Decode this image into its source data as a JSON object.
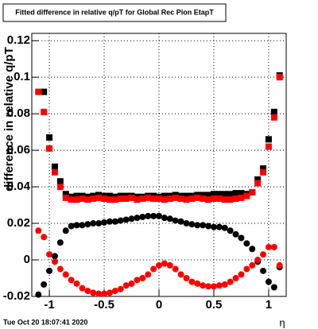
{
  "chart_data": {
    "type": "scatter",
    "title": "Fitted difference in relative q/pT for Global Rec Pion EtapT",
    "y_label": "difference in relative q/pT",
    "x_label": "η",
    "timestamp": "Tue Oct 20 18:07:41 2020",
    "grid": true,
    "xlim": [
      -1.16,
      1.16
    ],
    "ylim": [
      -0.02,
      0.124
    ],
    "xticks": [
      -1,
      -0.5,
      0,
      0.5,
      1
    ],
    "yticks": [
      -0.02,
      0,
      0.02,
      0.04,
      0.06,
      0.08,
      0.1,
      0.12
    ],
    "x": [
      -1.1,
      -1.05,
      -1.0,
      -0.95,
      -0.9,
      -0.85,
      -0.8,
      -0.75,
      -0.7,
      -0.65,
      -0.6,
      -0.55,
      -0.5,
      -0.45,
      -0.4,
      -0.35,
      -0.3,
      -0.25,
      -0.2,
      -0.15,
      -0.1,
      -0.05,
      0,
      0.05,
      0.1,
      0.15,
      0.2,
      0.25,
      0.3,
      0.35,
      0.4,
      0.45,
      0.5,
      0.55,
      0.6,
      0.65,
      0.7,
      0.75,
      0.8,
      0.85,
      0.9,
      0.95,
      1.0,
      1.05,
      1.1
    ],
    "series": [
      {
        "color": "#000000",
        "marker": "square",
        "values": [
          null,
          0.092,
          0.067,
          0.051,
          0.043,
          0.036,
          0.0345,
          0.035,
          0.035,
          0.0345,
          0.035,
          0.0355,
          0.035,
          0.035,
          0.0345,
          0.035,
          0.035,
          0.035,
          0.0345,
          0.0345,
          0.035,
          0.035,
          0.0345,
          0.035,
          0.035,
          0.0355,
          0.035,
          0.035,
          0.035,
          0.0355,
          0.0355,
          0.0355,
          0.036,
          0.036,
          0.036,
          0.036,
          0.0365,
          0.0365,
          0.036,
          0.037,
          0.044,
          0.05,
          0.066,
          0.081,
          0.101
        ]
      },
      {
        "color": "#ff0000",
        "marker": "square",
        "values": [
          0.092,
          0.081,
          0.061,
          0.048,
          0.04,
          0.034,
          0.033,
          0.033,
          0.0335,
          0.033,
          0.0335,
          0.034,
          0.0335,
          0.033,
          0.033,
          0.0335,
          0.0335,
          0.034,
          0.033,
          0.0335,
          0.034,
          0.0335,
          0.0335,
          0.033,
          0.0335,
          0.034,
          0.0335,
          0.033,
          0.0335,
          0.034,
          0.0335,
          0.033,
          0.0335,
          0.0335,
          0.033,
          0.033,
          0.0335,
          0.034,
          0.035,
          0.037,
          0.042,
          0.048,
          0.062,
          0.078,
          0.1
        ]
      },
      {
        "color": "#000000",
        "marker": "circle",
        "values": [
          -0.019,
          -0.0135,
          -0.006,
          0.002,
          0.0095,
          0.016,
          0.0185,
          0.019,
          0.019,
          0.0195,
          0.02,
          0.02,
          0.0205,
          0.021,
          0.021,
          0.0215,
          0.022,
          0.0225,
          0.023,
          0.0235,
          0.024,
          0.024,
          0.024,
          0.023,
          0.0225,
          0.0215,
          0.021,
          0.02,
          0.0195,
          0.019,
          0.019,
          0.0185,
          0.018,
          0.018,
          0.0175,
          0.016,
          0.014,
          0.012,
          0.009,
          0.006,
          -0.001,
          -0.006,
          -0.012,
          -0.015,
          -0.004
        ]
      },
      {
        "color": "#ff0000",
        "marker": "circle",
        "values": [
          0.016,
          0.0125,
          0.003,
          -0.001,
          -0.005,
          -0.008,
          -0.011,
          -0.013,
          -0.0155,
          -0.017,
          -0.018,
          -0.0185,
          -0.0185,
          -0.018,
          -0.017,
          -0.016,
          -0.014,
          -0.013,
          -0.011,
          -0.01,
          -0.008,
          -0.005,
          -0.003,
          -0.002,
          -0.003,
          -0.005,
          -0.008,
          -0.01,
          -0.012,
          -0.013,
          -0.014,
          -0.0145,
          -0.0145,
          -0.014,
          -0.0135,
          -0.012,
          -0.01,
          -0.008,
          -0.005,
          -0.003,
          0.0,
          0.003,
          0.007,
          0.007,
          -0.003
        ]
      }
    ]
  }
}
